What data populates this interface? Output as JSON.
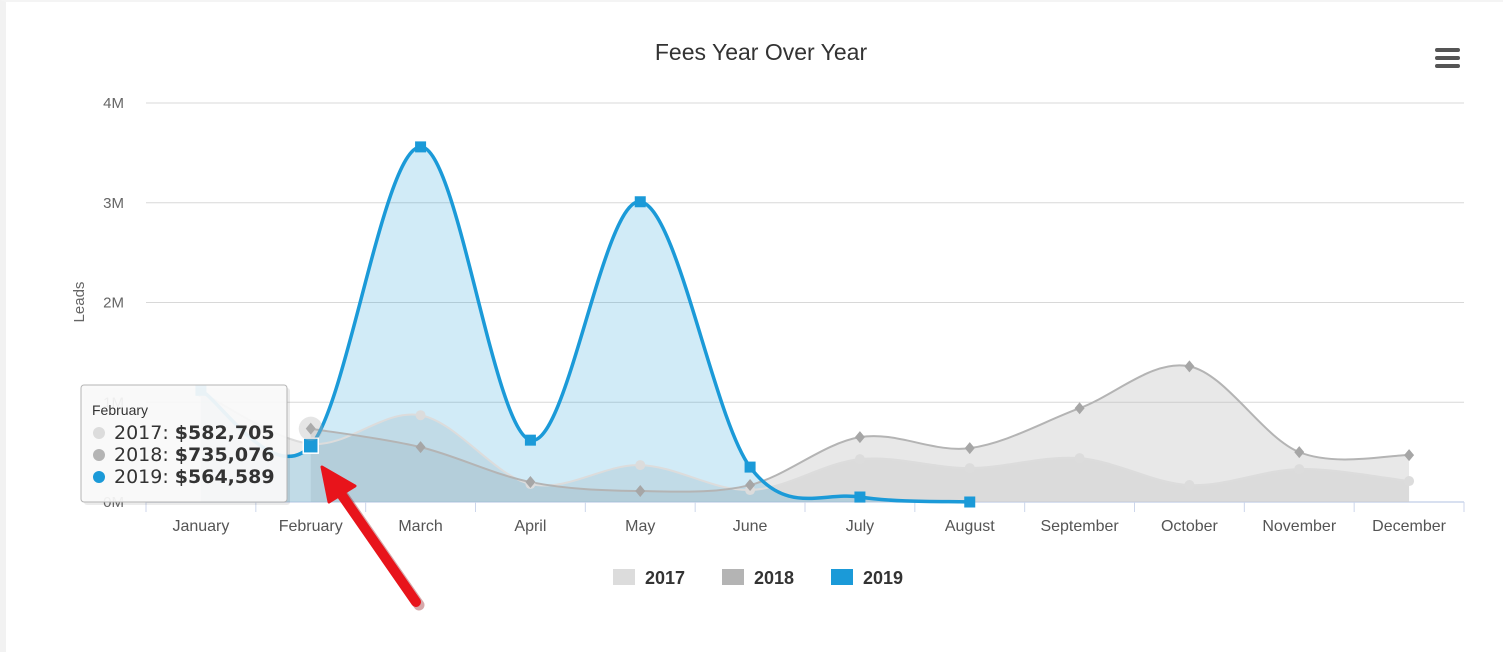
{
  "chart_data": {
    "type": "area",
    "title": "Fees Year Over Year",
    "ylabel": "Leads",
    "xlabel": "",
    "categories": [
      "January",
      "February",
      "March",
      "April",
      "May",
      "June",
      "July",
      "August",
      "September",
      "October",
      "November",
      "December"
    ],
    "ylim": [
      0,
      4000000
    ],
    "yticks": [
      0,
      1000000,
      2000000,
      3000000,
      4000000
    ],
    "ytick_labels": [
      "0M",
      "1M",
      "2M",
      "3M",
      "4M"
    ],
    "grid": true,
    "legend_position": "bottom-center",
    "series": [
      {
        "name": "2017",
        "color": "#dcdcdc",
        "marker": "circle",
        "values": [
          1100000,
          582705,
          870000,
          180000,
          370000,
          120000,
          430000,
          340000,
          440000,
          170000,
          330000,
          210000
        ]
      },
      {
        "name": "2018",
        "color": "#b4b4b4",
        "marker": "diamond",
        "values": [
          null,
          735076,
          550000,
          200000,
          110000,
          170000,
          650000,
          540000,
          940000,
          1360000,
          500000,
          470000
        ]
      },
      {
        "name": "2019",
        "color": "#1b9ad8",
        "marker": "square",
        "values": [
          1120000,
          564589,
          3560000,
          620000,
          3010000,
          350000,
          50000,
          0,
          null,
          null,
          null,
          null
        ]
      }
    ],
    "tooltip": {
      "category": "February",
      "rows": [
        {
          "series": "2017",
          "value": "$582,705"
        },
        {
          "series": "2018",
          "value": "$735,076"
        },
        {
          "series": "2019",
          "value": "$564,589"
        }
      ]
    },
    "annotation": {
      "type": "arrow",
      "color": "#e8141b",
      "target": "February"
    }
  },
  "icons": {
    "menu": "hamburger-menu-icon"
  }
}
